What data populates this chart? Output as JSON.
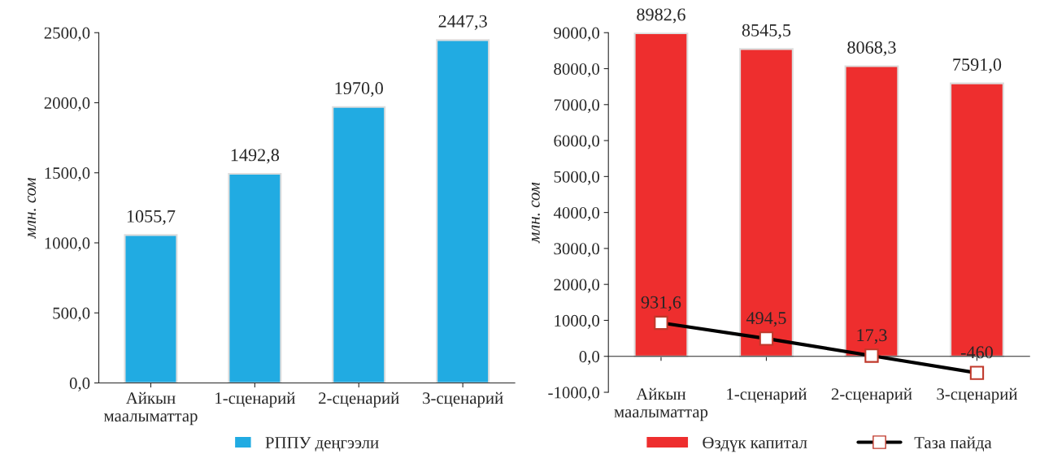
{
  "chart_data": [
    {
      "type": "bar",
      "ylabel": "млн. сом",
      "categories": [
        "Айкын\nмаалыматтар",
        "1-сценарий",
        "2-сценарий",
        "3-сценарий"
      ],
      "series": [
        {
          "name": "РППУ деңгээли",
          "color": "#21abe2",
          "values": [
            1055.7,
            1492.8,
            1970.0,
            2447.3
          ],
          "value_labels": [
            "1055,7",
            "1492,8",
            "1970,0",
            "2447,3"
          ]
        }
      ],
      "ylim": [
        0,
        2500
      ],
      "yticks": [
        {
          "value": 0,
          "label": "0,0"
        },
        {
          "value": 500,
          "label": "500,0"
        },
        {
          "value": 1000,
          "label": "1000,0"
        },
        {
          "value": 1500,
          "label": "1500,0"
        },
        {
          "value": 2000,
          "label": "2000,0"
        },
        {
          "value": 2500,
          "label": "2500,0"
        }
      ],
      "legend": "bottom",
      "grid": false
    },
    {
      "type": "bar",
      "ylabel": "млн. сом",
      "categories": [
        "Айкын\nмаалыматтар",
        "1-сценарий",
        "2-сценарий",
        "3-сценарий"
      ],
      "series": [
        {
          "name": "Өздүк капитал",
          "color": "#ee2e2e",
          "values": [
            8982.6,
            8545.5,
            8068.3,
            7591.0
          ],
          "value_labels": [
            "8982,6",
            "8545,5",
            "8068,3",
            "7591,0"
          ]
        },
        {
          "name": "Таза пайда",
          "type": "line",
          "color": "#000000",
          "marker": "square",
          "values": [
            931.6,
            494.5,
            17.3,
            -460
          ],
          "value_labels": [
            "931,6",
            "494,5",
            "17,3",
            "-460"
          ]
        }
      ],
      "ylim": [
        -1000,
        9000
      ],
      "yticks": [
        {
          "value": -1000,
          "label": "-1000,0"
        },
        {
          "value": 0,
          "label": "0,0"
        },
        {
          "value": 1000,
          "label": "1000,0"
        },
        {
          "value": 2000,
          "label": "2000,0"
        },
        {
          "value": 3000,
          "label": "3000,0"
        },
        {
          "value": 4000,
          "label": "4000,0"
        },
        {
          "value": 5000,
          "label": "5000,0"
        },
        {
          "value": 6000,
          "label": "6000,0"
        },
        {
          "value": 7000,
          "label": "7000,0"
        },
        {
          "value": 8000,
          "label": "8000,0"
        },
        {
          "value": 9000,
          "label": "9000,0"
        }
      ],
      "legend": "bottom",
      "grid": false
    }
  ]
}
